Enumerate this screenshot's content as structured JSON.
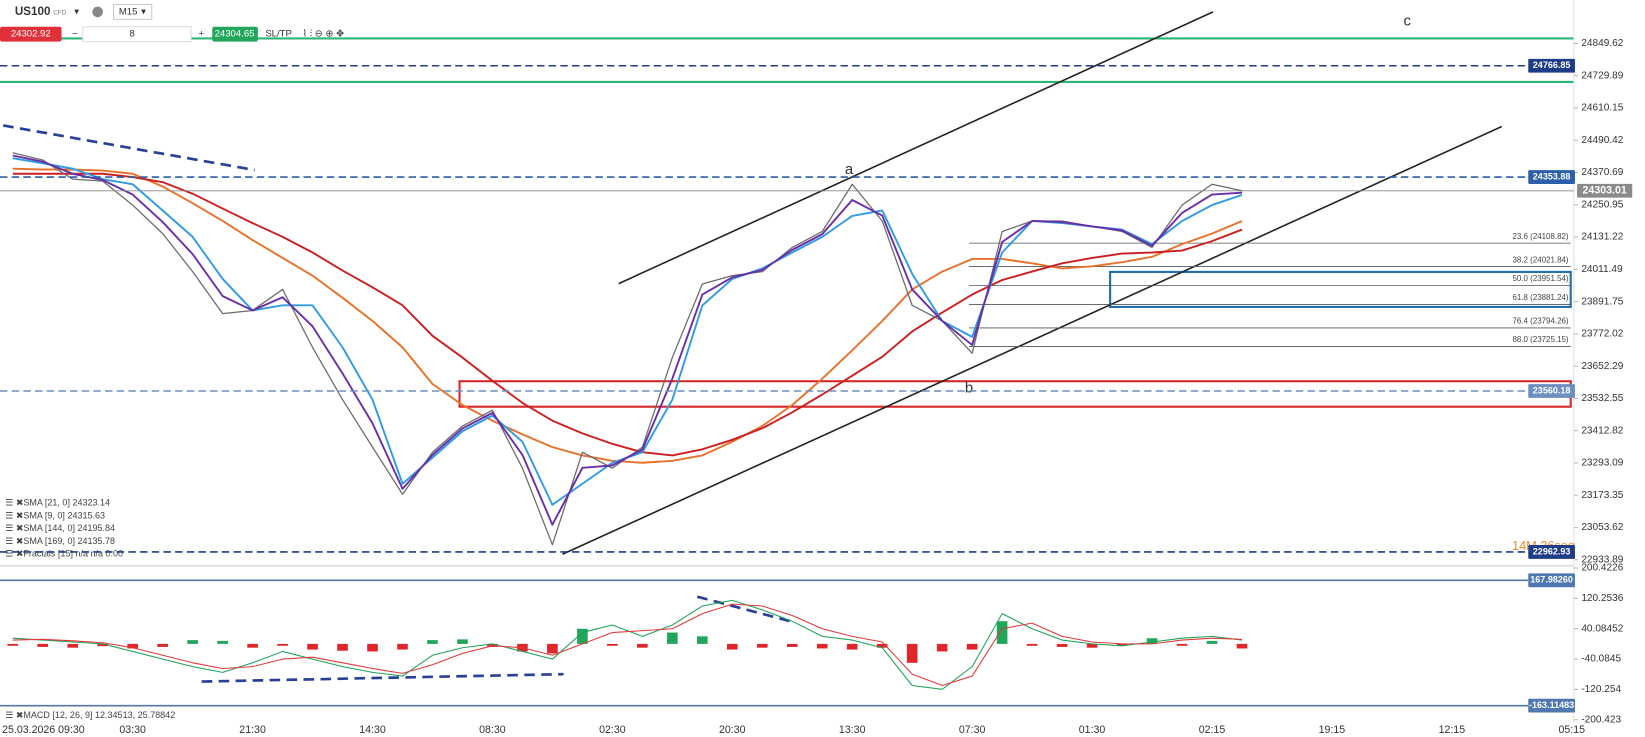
{
  "toolbar": {
    "symbol": "US100",
    "instrument_type": "CFD",
    "timeframe": "M15",
    "sell_price": 24302.92,
    "quantity": 8,
    "buy_price": 24304.65,
    "sl_tp": "SL/TP"
  },
  "chart_data": [
    {
      "type": "line",
      "categories": [
        "25.03.2026 09:30",
        null,
        null,
        null,
        "03:30",
        null,
        null,
        null,
        "21:30",
        null,
        null,
        null,
        "14:30",
        null,
        null,
        null,
        "08:30",
        null,
        null,
        null,
        "02:30",
        null,
        null,
        null,
        "20:30",
        null,
        null,
        null,
        "13:30",
        null,
        null,
        null,
        "07:30",
        null,
        null,
        null,
        "01:30",
        null,
        null,
        null,
        "02:15",
        null,
        null,
        null,
        "19:15",
        null,
        null,
        null,
        "12:15",
        null,
        null,
        null,
        "05:15"
      ],
      "ylim": [
        22923,
        25010
      ],
      "yticks": [
        24849.62,
        24729.89,
        24610.15,
        24490.42,
        24370.69,
        24250.95,
        24131.22,
        24011.49,
        23891.75,
        23772.02,
        23652.29,
        23532.55,
        23412.82,
        23293.09,
        23173.35,
        23053.62,
        22933.89
      ],
      "series": [
        {
          "color": "#6b6b6b",
          "values": [
            24444,
            24417,
            24346,
            24339,
            24250,
            24144,
            24003,
            23847,
            23859,
            23937,
            23722,
            23528,
            23352,
            23177,
            23333,
            23430,
            23489,
            23274,
            22990,
            23333,
            23274,
            23352,
            23684,
            23957,
            23988,
            24003,
            24093,
            24152,
            24327,
            24191,
            23878,
            23820,
            23700,
            24152,
            24191,
            24191,
            24171,
            24152,
            24093,
            24250,
            24327,
            24303,
            null,
            null,
            null,
            null,
            null,
            null,
            null,
            null,
            null,
            null,
            null
          ]
        },
        {
          "name": "SMA [21, 0] 24323.14",
          "color": "#2f9be3",
          "values": [
            24424,
            24405,
            24385,
            24346,
            24327,
            24230,
            24132,
            23976,
            23859,
            23878,
            23878,
            23722,
            23528,
            23216,
            23313,
            23411,
            23469,
            23372,
            23138,
            23216,
            23294,
            23333,
            23528,
            23878,
            23976,
            24015,
            24074,
            24132,
            24210,
            24230,
            23995,
            23820,
            23761,
            24074,
            24191,
            24183,
            24171,
            24159,
            24105,
            24191,
            24250,
            24288,
            null,
            null,
            null,
            null,
            null,
            null,
            null,
            null,
            null,
            null,
            null
          ]
        },
        {
          "name": "SMA [9, 0] 24315.63",
          "color": "#6a2fa8",
          "values": [
            24434,
            24411,
            24366,
            24343,
            24289,
            24187,
            24068,
            23912,
            23859,
            23908,
            23800,
            23625,
            23440,
            23197,
            23323,
            23421,
            23479,
            23323,
            23064,
            23275,
            23284,
            23343,
            23606,
            23918,
            23982,
            24009,
            24084,
            24142,
            24269,
            24211,
            23937,
            23820,
            23731,
            24113,
            24191,
            24187,
            24171,
            24156,
            24099,
            24221,
            24289,
            24296,
            null,
            null,
            null,
            null,
            null,
            null,
            null,
            null,
            null,
            null,
            null
          ]
        },
        {
          "name": "SMA [144, 0] 24195.84",
          "color": "#e8722a",
          "values": [
            24385,
            24382,
            24382,
            24378,
            24366,
            24319,
            24257,
            24191,
            24120,
            24054,
            23988,
            23906,
            23820,
            23722,
            23586,
            23508,
            23450,
            23399,
            23352,
            23321,
            23301,
            23294,
            23301,
            23321,
            23372,
            23430,
            23508,
            23606,
            23711,
            23820,
            23937,
            24003,
            24050,
            24050,
            24034,
            24015,
            24023,
            24038,
            24058,
            24105,
            24144,
            24191,
            null,
            null,
            null,
            null,
            null,
            null,
            null,
            null,
            null,
            null,
            null
          ]
        },
        {
          "name": "SMA [169, 0] 24135.78",
          "color": "#cc1f1f",
          "values": [
            24366,
            24366,
            24366,
            24366,
            24354,
            24335,
            24292,
            24237,
            24183,
            24132,
            24074,
            24007,
            23945,
            23878,
            23765,
            23684,
            23598,
            23516,
            23450,
            23403,
            23364,
            23333,
            23321,
            23344,
            23379,
            23422,
            23481,
            23547,
            23617,
            23687,
            23781,
            23851,
            23918,
            23972,
            24003,
            24034,
            24054,
            24070,
            24074,
            24081,
            24116,
            24159,
            null,
            null,
            null,
            null,
            null,
            null,
            null,
            null,
            null,
            null,
            null
          ]
        }
      ],
      "legend_note": "Fractals [15] n/a n/a 0.00",
      "levels": [
        {
          "value": 24766.85,
          "color": "#1f3c88",
          "style": "dashed"
        },
        {
          "value": 24353.88,
          "color": "#2b5fa8",
          "style": "dashed"
        },
        {
          "value": 24303.01,
          "color": "#8a8a8a",
          "style": "current"
        },
        {
          "value": 23560.18,
          "color": "#6d8fbf",
          "style": "dashed"
        },
        {
          "value": 22962.93,
          "color": "#1f3c88",
          "style": "dashed"
        }
      ],
      "fibonacci": [
        {
          "value": 24108.82,
          "label": "23.6 (24108.82)"
        },
        {
          "value": 24021.84,
          "label": "38.2 (24021.84)"
        },
        {
          "value": 23951.54,
          "label": "50.0 (23951.54)"
        },
        {
          "value": 23881.24,
          "label": "61.8 (23881.24)"
        },
        {
          "value": 23794.26,
          "label": "76.4 (23794.26)"
        },
        {
          "value": 23725.15,
          "label": "88.0 (23725.15)"
        }
      ],
      "annotations": [
        "a",
        "b",
        "c"
      ],
      "countdown": "14M 36seg"
    },
    {
      "type": "macd",
      "ylim": [
        -200.423,
        200.4226
      ],
      "yticks": [
        200.4226,
        120.2536,
        40.08452,
        -40.0845,
        -120.254,
        -200.423
      ],
      "histogram": {
        "up_color": "#21a65b",
        "down_color": "#e0262a",
        "values": [
          -5,
          -8,
          -10,
          -6,
          -12,
          -8,
          10,
          8,
          -10,
          -5,
          -15,
          -18,
          -20,
          -15,
          10,
          12,
          -8,
          -20,
          -25,
          40,
          -5,
          -10,
          30,
          20,
          -15,
          -10,
          -8,
          -12,
          -15,
          -10,
          -50,
          -20,
          -15,
          60,
          -5,
          -8,
          -10,
          -5,
          15,
          -5,
          8,
          -12,
          null,
          null,
          null,
          null,
          null,
          null,
          null,
          null,
          null,
          null,
          null
        ]
      },
      "series": [
        {
          "color": "#1fa35a",
          "values": [
            15,
            10,
            5,
            0,
            -20,
            -40,
            -60,
            -75,
            -50,
            -20,
            -40,
            -60,
            -75,
            -85,
            -30,
            -10,
            0,
            -20,
            -40,
            30,
            50,
            20,
            50,
            100,
            115,
            90,
            60,
            20,
            10,
            -10,
            -110,
            -120,
            -60,
            80,
            40,
            10,
            0,
            -5,
            5,
            15,
            20,
            10,
            null,
            null,
            null,
            null,
            null,
            null,
            null,
            null,
            null,
            null,
            null
          ]
        },
        {
          "color": "#e03a3a",
          "values": [
            10,
            12,
            8,
            3,
            -10,
            -30,
            -50,
            -65,
            -60,
            -40,
            -35,
            -50,
            -65,
            -78,
            -55,
            -25,
            -5,
            -10,
            -30,
            0,
            30,
            35,
            40,
            80,
            105,
            100,
            75,
            40,
            20,
            5,
            -80,
            -110,
            -85,
            40,
            55,
            20,
            5,
            0,
            0,
            10,
            15,
            12,
            null,
            null,
            null,
            null,
            null,
            null,
            null,
            null,
            null,
            null,
            null
          ]
        }
      ],
      "levels": [
        {
          "value": 167.9826,
          "label": "167.98260",
          "color": "#4f78b0",
          "style": "solid"
        },
        {
          "value": -163.11483,
          "color": "#4f78b0",
          "style": "solid"
        }
      ],
      "legend": "MACD [12, 26, 9] 12.34513, 25.78842"
    }
  ]
}
